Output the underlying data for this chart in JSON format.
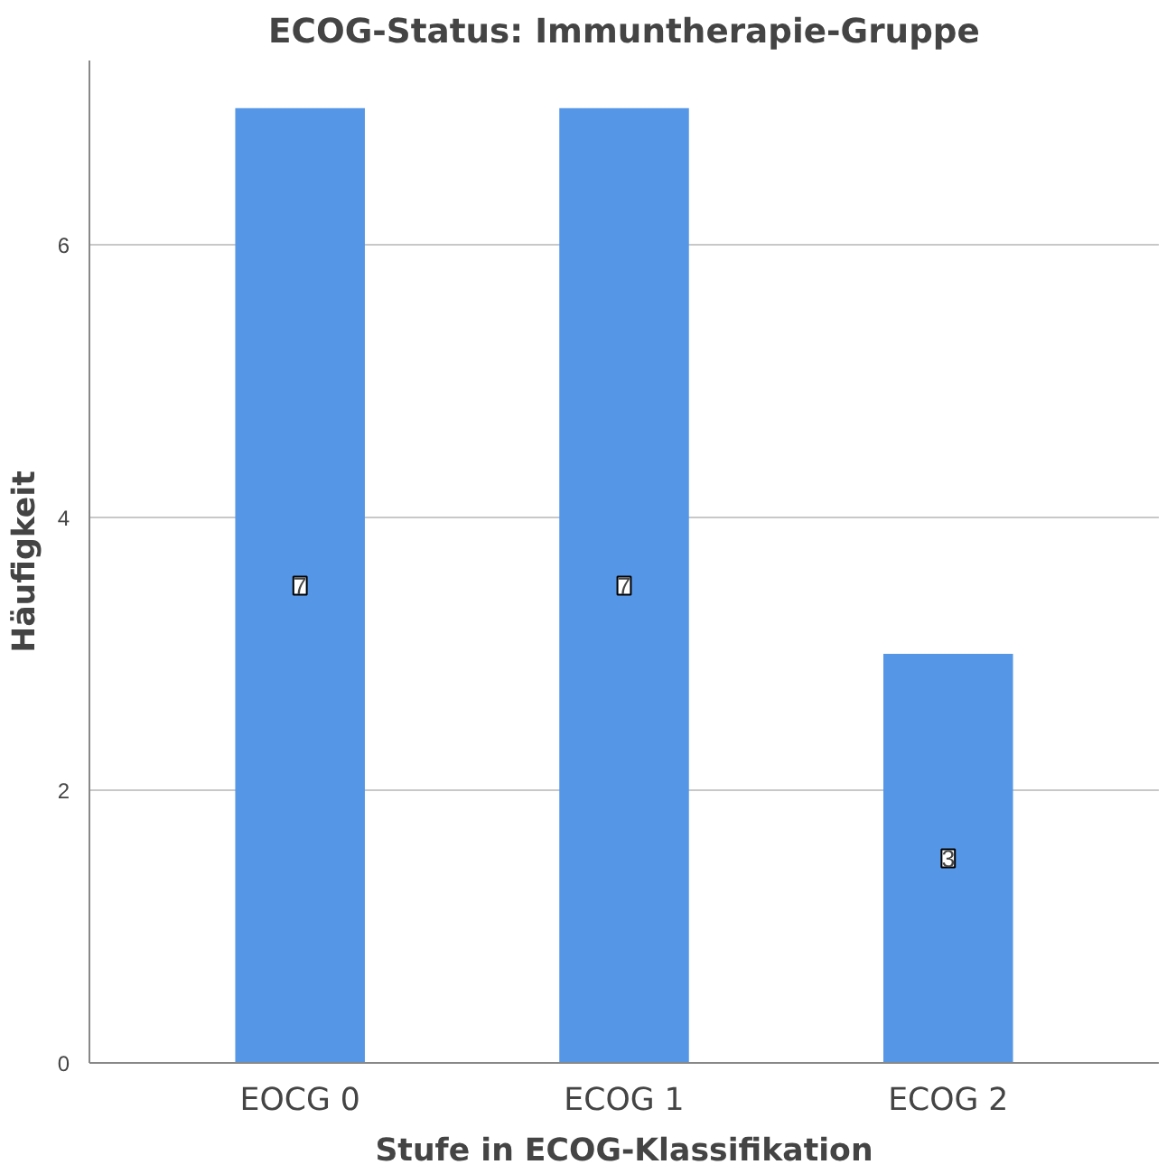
{
  "chart_data": {
    "type": "bar",
    "title": "ECOG-Status: Immuntherapie-Gruppe",
    "xlabel": "Stufe in ECOG-Klassifikation",
    "ylabel": "Häufigkeit",
    "categories": [
      "EOCG 0",
      "ECOG 1",
      "ECOG 2"
    ],
    "values": [
      7,
      7,
      3
    ],
    "color": "#5596e6",
    "ylim": [
      0,
      7.35
    ],
    "yticks": [
      0,
      2,
      4,
      6
    ],
    "grid": "y",
    "data_labels": true
  }
}
